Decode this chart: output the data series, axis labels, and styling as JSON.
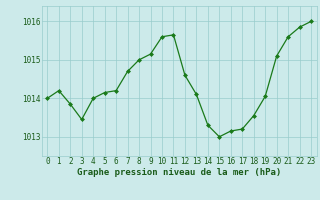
{
  "x": [
    0,
    1,
    2,
    3,
    4,
    5,
    6,
    7,
    8,
    9,
    10,
    11,
    12,
    13,
    14,
    15,
    16,
    17,
    18,
    19,
    20,
    21,
    22,
    23
  ],
  "y": [
    1014.0,
    1014.2,
    1013.85,
    1013.45,
    1014.0,
    1014.15,
    1014.2,
    1014.7,
    1015.0,
    1015.15,
    1015.6,
    1015.65,
    1014.6,
    1014.1,
    1013.3,
    1013.0,
    1013.15,
    1013.2,
    1013.55,
    1014.05,
    1015.1,
    1015.6,
    1015.85,
    1016.0
  ],
  "line_color": "#1a7a1a",
  "marker": "D",
  "marker_size": 2.0,
  "line_width": 0.9,
  "bg_color": "#cceaea",
  "grid_color": "#99cccc",
  "xlabel": "Graphe pression niveau de la mer (hPa)",
  "xlabel_fontsize": 6.5,
  "xlabel_color": "#1a5c1a",
  "tick_label_color": "#1a5c1a",
  "tick_label_fontsize": 5.5,
  "yticks": [
    1013,
    1014,
    1015,
    1016
  ],
  "ylim": [
    1012.5,
    1016.4
  ],
  "xlim": [
    -0.5,
    23.5
  ],
  "xticks": [
    0,
    1,
    2,
    3,
    4,
    5,
    6,
    7,
    8,
    9,
    10,
    11,
    12,
    13,
    14,
    15,
    16,
    17,
    18,
    19,
    20,
    21,
    22,
    23
  ]
}
